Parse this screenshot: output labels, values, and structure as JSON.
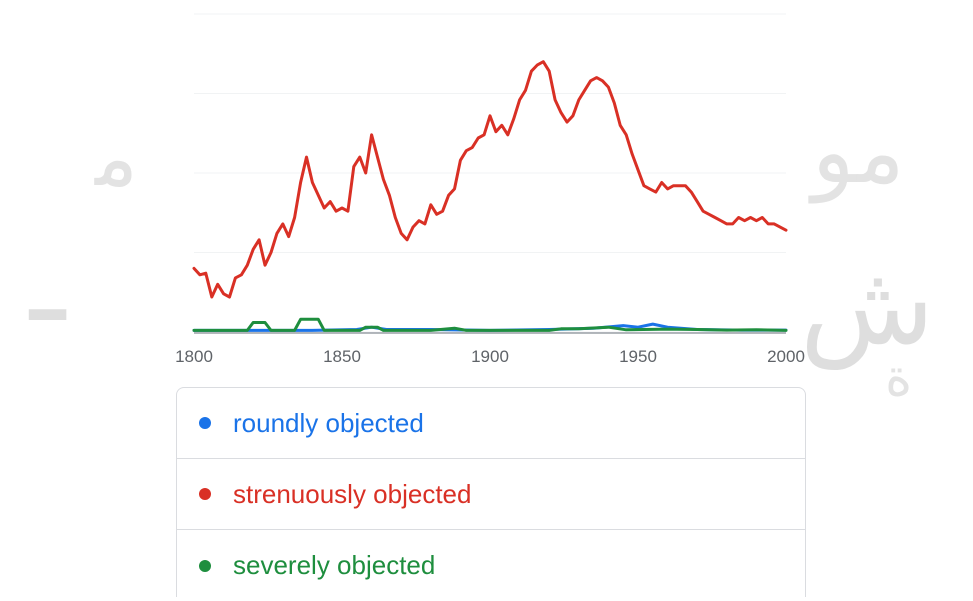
{
  "watermark": {
    "glyph_a": "ﻣ",
    "glyph_b": "ـ",
    "glyph_c": "مو",
    "glyph_d": "ش",
    "glyph_e": "ة"
  },
  "colors": {
    "roundly": "#1a73e8",
    "strenuously": "#d93025",
    "severely": "#1e8e3e",
    "grid": "#f1f3f4",
    "axis": "#9aa0a6"
  },
  "chart_data": {
    "type": "line",
    "xlim": [
      1800,
      2000
    ],
    "ylim": [
      0,
      100
    ],
    "x_ticks": [
      "1800",
      "1850",
      "1900",
      "1950",
      "2000"
    ],
    "grid": true,
    "legend_placement": "bottom",
    "series": [
      {
        "name": "roundly objected",
        "color": "#1a73e8",
        "points": [
          [
            1800,
            0.5
          ],
          [
            1820,
            0.5
          ],
          [
            1840,
            0.5
          ],
          [
            1855,
            0.8
          ],
          [
            1860,
            1.5
          ],
          [
            1865,
            0.8
          ],
          [
            1880,
            0.8
          ],
          [
            1900,
            0.5
          ],
          [
            1920,
            0.8
          ],
          [
            1935,
            1.2
          ],
          [
            1945,
            2
          ],
          [
            1950,
            1.5
          ],
          [
            1955,
            2.5
          ],
          [
            1960,
            1.5
          ],
          [
            1970,
            0.8
          ],
          [
            1985,
            0.6
          ],
          [
            2000,
            0.6
          ]
        ]
      },
      {
        "name": "strenuously objected",
        "color": "#d93025",
        "points": [
          [
            1800,
            20
          ],
          [
            1802,
            18
          ],
          [
            1804,
            18.5
          ],
          [
            1806,
            11
          ],
          [
            1808,
            15
          ],
          [
            1810,
            12
          ],
          [
            1812,
            11
          ],
          [
            1814,
            17
          ],
          [
            1816,
            18
          ],
          [
            1818,
            21
          ],
          [
            1820,
            26
          ],
          [
            1822,
            29
          ],
          [
            1824,
            21
          ],
          [
            1826,
            25
          ],
          [
            1828,
            31
          ],
          [
            1830,
            34
          ],
          [
            1832,
            30
          ],
          [
            1834,
            36
          ],
          [
            1836,
            47
          ],
          [
            1838,
            55
          ],
          [
            1840,
            47
          ],
          [
            1842,
            43
          ],
          [
            1844,
            39
          ],
          [
            1846,
            41
          ],
          [
            1848,
            38
          ],
          [
            1850,
            39
          ],
          [
            1852,
            38
          ],
          [
            1854,
            52
          ],
          [
            1856,
            55
          ],
          [
            1858,
            50
          ],
          [
            1860,
            62
          ],
          [
            1862,
            55
          ],
          [
            1864,
            48
          ],
          [
            1866,
            43
          ],
          [
            1868,
            36
          ],
          [
            1870,
            31
          ],
          [
            1872,
            29
          ],
          [
            1874,
            33
          ],
          [
            1876,
            35
          ],
          [
            1878,
            34
          ],
          [
            1880,
            40
          ],
          [
            1882,
            37
          ],
          [
            1884,
            38
          ],
          [
            1886,
            43
          ],
          [
            1888,
            45
          ],
          [
            1890,
            54
          ],
          [
            1892,
            57
          ],
          [
            1894,
            58
          ],
          [
            1896,
            61
          ],
          [
            1898,
            62
          ],
          [
            1900,
            68
          ],
          [
            1902,
            63
          ],
          [
            1904,
            65
          ],
          [
            1906,
            62
          ],
          [
            1908,
            67
          ],
          [
            1910,
            73
          ],
          [
            1912,
            76
          ],
          [
            1914,
            82
          ],
          [
            1916,
            84
          ],
          [
            1918,
            85
          ],
          [
            1920,
            82
          ],
          [
            1922,
            73
          ],
          [
            1924,
            69
          ],
          [
            1926,
            66
          ],
          [
            1928,
            68
          ],
          [
            1930,
            73
          ],
          [
            1932,
            76
          ],
          [
            1934,
            79
          ],
          [
            1936,
            80
          ],
          [
            1938,
            79
          ],
          [
            1940,
            77
          ],
          [
            1942,
            72
          ],
          [
            1944,
            65
          ],
          [
            1946,
            62
          ],
          [
            1948,
            56
          ],
          [
            1950,
            51
          ],
          [
            1952,
            46
          ],
          [
            1954,
            45
          ],
          [
            1956,
            44
          ],
          [
            1958,
            47
          ],
          [
            1960,
            45
          ],
          [
            1962,
            46
          ],
          [
            1964,
            46
          ],
          [
            1966,
            46
          ],
          [
            1968,
            44
          ],
          [
            1970,
            41
          ],
          [
            1972,
            38
          ],
          [
            1974,
            37
          ],
          [
            1976,
            36
          ],
          [
            1978,
            35
          ],
          [
            1980,
            34
          ],
          [
            1982,
            34
          ],
          [
            1984,
            36
          ],
          [
            1986,
            35
          ],
          [
            1988,
            36
          ],
          [
            1990,
            35
          ],
          [
            1992,
            36
          ],
          [
            1994,
            34
          ],
          [
            1996,
            34
          ],
          [
            1998,
            33
          ],
          [
            2000,
            32
          ]
        ]
      },
      {
        "name": "severely objected",
        "color": "#1e8e3e",
        "points": [
          [
            1800,
            0.5
          ],
          [
            1818,
            0.5
          ],
          [
            1820,
            3
          ],
          [
            1824,
            3
          ],
          [
            1826,
            0.5
          ],
          [
            1834,
            0.5
          ],
          [
            1836,
            4
          ],
          [
            1842,
            4
          ],
          [
            1844,
            0.5
          ],
          [
            1856,
            0.5
          ],
          [
            1858,
            1.5
          ],
          [
            1862,
            1.5
          ],
          [
            1864,
            0.5
          ],
          [
            1880,
            0.5
          ],
          [
            1888,
            1.2
          ],
          [
            1892,
            0.5
          ],
          [
            1920,
            0.5
          ],
          [
            1924,
            1
          ],
          [
            1930,
            1
          ],
          [
            1940,
            1.5
          ],
          [
            1946,
            0.7
          ],
          [
            1960,
            0.9
          ],
          [
            1970,
            0.8
          ],
          [
            1980,
            0.6
          ],
          [
            1990,
            0.7
          ],
          [
            2000,
            0.5
          ]
        ]
      }
    ]
  },
  "legend": {
    "items": [
      {
        "label": "roundly objected"
      },
      {
        "label": "strenuously objected"
      },
      {
        "label": "severely objected"
      }
    ]
  }
}
